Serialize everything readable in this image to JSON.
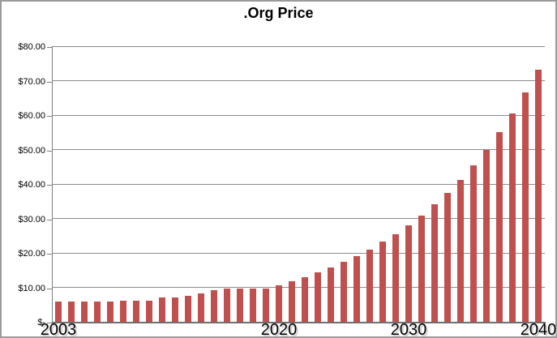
{
  "chart": {
    "title": ".Org Price",
    "bar_color": "#C0504D",
    "gridline_color": "#8C8C8C",
    "axis_color": "#7F7F7F",
    "border_color": "#9B9B9B",
    "background_color": "#FFFFFF",
    "y_axis": {
      "min": 0,
      "max": 80,
      "step": 10,
      "tick_labels": [
        "$-",
        "$10.00",
        "$20.00",
        "$30.00",
        "$40.00",
        "$50.00",
        "$60.00",
        "$70.00",
        "$80.00"
      ]
    },
    "x_axis": {
      "tick_labels": [
        {
          "label": "2003",
          "bar_index": 0
        },
        {
          "label": "2020",
          "bar_index": 17
        },
        {
          "label": "2030",
          "bar_index": 27
        },
        {
          "label": "2040",
          "bar_index": 37
        }
      ]
    }
  },
  "chart_data": {
    "type": "bar",
    "title": ".Org Price",
    "xlabel": "",
    "ylabel": "",
    "ylim": [
      0,
      80
    ],
    "ytick_step": 10,
    "ytick_format": "currency",
    "grid": "horizontal",
    "legend": "none",
    "categories": [
      2003,
      2004,
      2005,
      2006,
      2007,
      2008,
      2009,
      2010,
      2011,
      2012,
      2013,
      2014,
      2015,
      2016,
      2017,
      2018,
      2019,
      2020,
      2021,
      2022,
      2023,
      2024,
      2025,
      2026,
      2027,
      2028,
      2029,
      2030,
      2031,
      2032,
      2033,
      2034,
      2035,
      2036,
      2037,
      2038,
      2039,
      2040
    ],
    "values": [
      6.0,
      6.0,
      6.0,
      6.0,
      6.0,
      6.42,
      6.42,
      6.42,
      7.21,
      7.21,
      7.7,
      8.47,
      9.31,
      9.93,
      9.93,
      9.93,
      9.93,
      10.92,
      12.01,
      13.22,
      14.54,
      15.99,
      17.59,
      19.35,
      21.29,
      23.42,
      25.76,
      28.33,
      31.17,
      34.28,
      37.71,
      41.48,
      45.63,
      50.19,
      55.21,
      60.73,
      66.81,
      73.49
    ]
  }
}
